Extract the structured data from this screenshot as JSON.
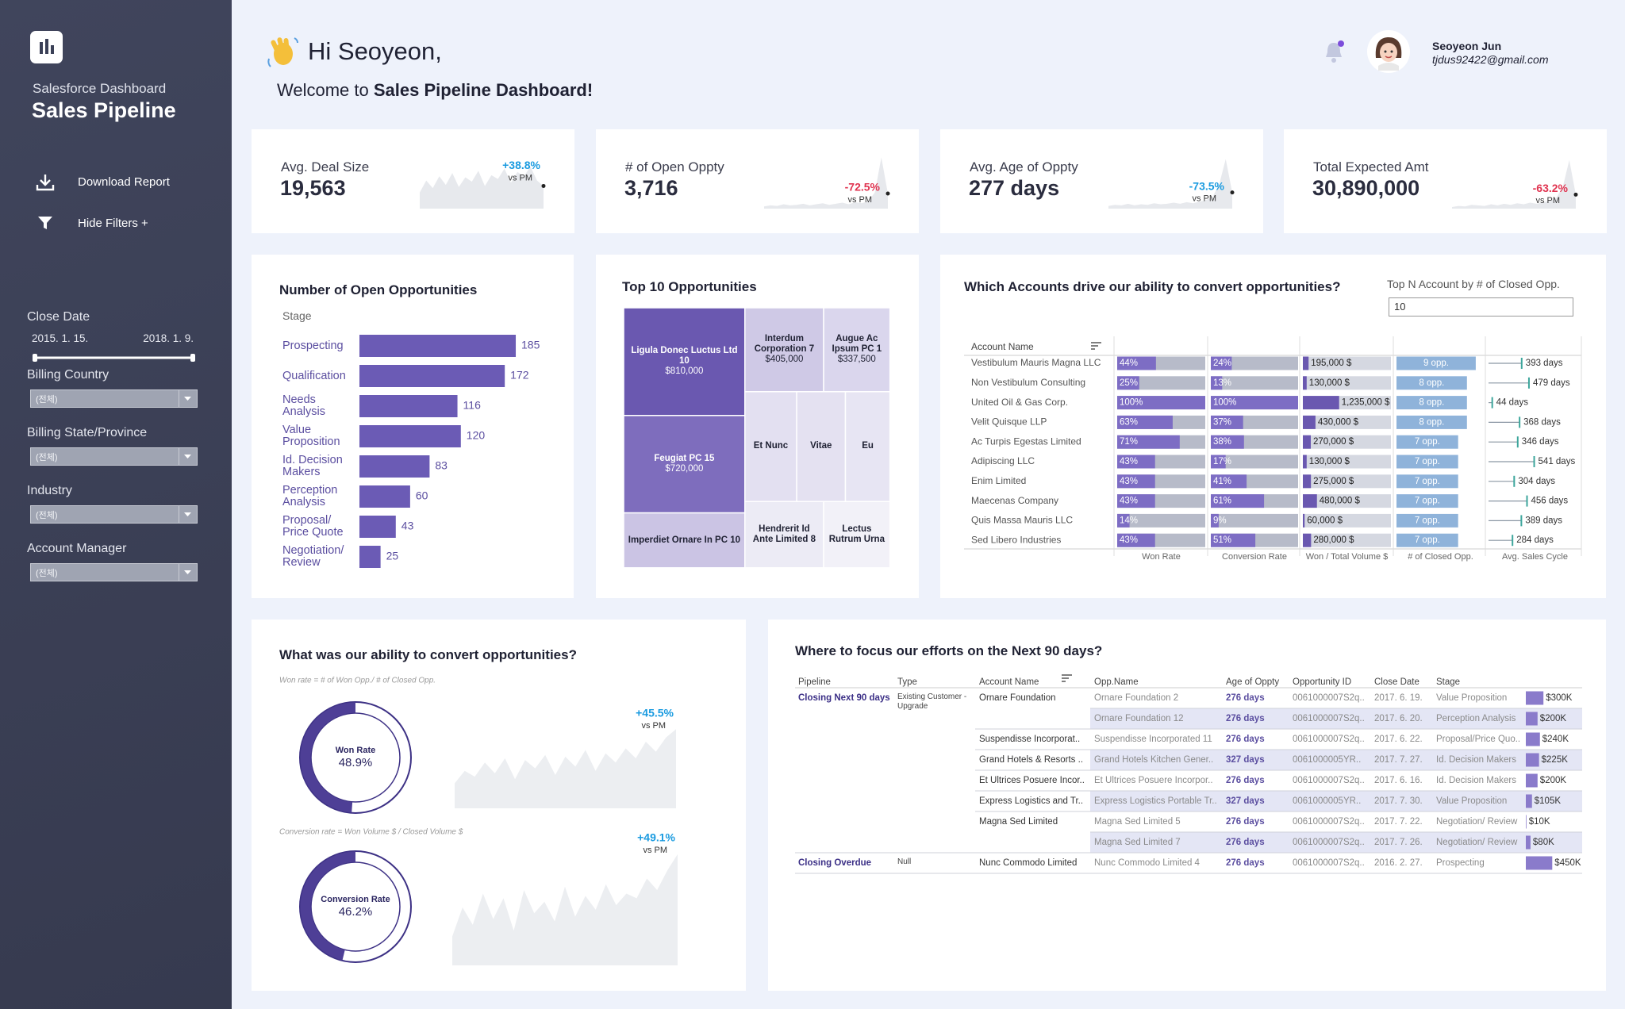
{
  "sidebar": {
    "subtitle": "Salesforce Dashboard",
    "title": "Sales Pipeline",
    "menu": [
      "Download Report",
      "Hide Filters +"
    ],
    "close_date": {
      "label": "Close Date",
      "start": "2015. 1. 15.",
      "end": "2018. 1. 9."
    },
    "filters": [
      {
        "label": "Billing Country",
        "value": "(전체)"
      },
      {
        "label": "Billing State/Province",
        "value": "(전체)"
      },
      {
        "label": "Industry",
        "value": "(전체)"
      },
      {
        "label": "Account Manager",
        "value": "(전체)"
      }
    ]
  },
  "header": {
    "greeting": "Hi Seoyeon,",
    "welcome": "Welcome to",
    "dashboard_name": "Sales Pipeline Dashboard!",
    "user_name": "Seoyeon Jun",
    "user_email": "tjdus92422@gmail.com"
  },
  "kpis": [
    {
      "label": "Avg. Deal Size",
      "value": "19,563",
      "change": "+38.8%",
      "change_color": "#1a9be0",
      "vs": "vs PM",
      "trend": {
        "type": "area",
        "values": [
          30,
          52,
          38,
          60,
          44,
          66,
          40,
          58,
          50,
          70,
          42,
          62,
          55,
          74,
          48,
          68,
          60,
          78,
          52,
          42
        ],
        "ylim": [
          0,
          100
        ],
        "color": "#e7e9ed"
      }
    },
    {
      "label": "# of Open Oppty",
      "value": "3,716",
      "change": "-72.5%",
      "change_color": "#e0334f",
      "vs": "vs PM",
      "trend": {
        "type": "area",
        "values": [
          4,
          6,
          5,
          8,
          6,
          7,
          9,
          6,
          8,
          10,
          7,
          9,
          11,
          8,
          12,
          10,
          14,
          30,
          95,
          28
        ],
        "ylim": [
          0,
          100
        ],
        "color": "#e7e9ed"
      }
    },
    {
      "label": "Avg. Age of Oppty",
      "value": "277 days",
      "change": "-73.5%",
      "change_color": "#1a9be0",
      "vs": "vs PM",
      "trend": {
        "type": "area",
        "values": [
          5,
          7,
          6,
          9,
          6,
          8,
          7,
          10,
          8,
          9,
          11,
          9,
          12,
          10,
          13,
          16,
          22,
          45,
          92,
          30
        ],
        "ylim": [
          0,
          100
        ],
        "color": "#e7e9ed"
      }
    },
    {
      "label": "Total Expected Amt",
      "value": "30,890,000",
      "change": "-63.2%",
      "change_color": "#e0334f",
      "vs": "vs PM",
      "trend": {
        "type": "area",
        "values": [
          3,
          5,
          4,
          7,
          6,
          5,
          8,
          6,
          9,
          7,
          10,
          8,
          11,
          9,
          12,
          14,
          20,
          40,
          90,
          26
        ],
        "ylim": [
          0,
          100
        ],
        "color": "#e7e9ed"
      }
    }
  ],
  "open_opportunities": {
    "type": "bar",
    "orientation": "horizontal",
    "title": "Number of Open Opportunities",
    "axis_label": "Stage",
    "categories": [
      "Prospecting",
      "Qualification",
      "Needs Analysis",
      "Value Proposition",
      "Id. Decision Makers",
      "Perception Analysis",
      "Proposal/ Price Quote",
      "Negotiation/ Review"
    ],
    "values": [
      185,
      172,
      116,
      120,
      83,
      60,
      43,
      25
    ],
    "xlim": [
      0,
      200
    ],
    "color": "#6b5bb5"
  },
  "top_opportunities": {
    "type": "treemap",
    "title": "Top 10 Opportunities",
    "tiles": [
      {
        "name": "Ligula Donec Luctus Ltd 10",
        "value": 810000,
        "value_label": "$810,000",
        "color": "#6a58b0"
      },
      {
        "name": "Feugiat PC 15",
        "value": 720000,
        "value_label": "$720,000",
        "color": "#7e6dbd"
      },
      {
        "name": "Imperdiet Ornare In PC 10",
        "color": "#cbc4e4"
      },
      {
        "name": "Interdum Corporation 7",
        "value": 405000,
        "value_label": "$405,000",
        "color": "#cfc9e6"
      },
      {
        "name": "Augue Ac Ipsum PC 1",
        "value": 337500,
        "value_label": "$337,500",
        "color": "#dad6ed"
      },
      {
        "name": "Et Nunc",
        "color": "#e3e0f1"
      },
      {
        "name": "Vitae",
        "color": "#e4e1f1"
      },
      {
        "name": "Eu",
        "color": "#e7e5f3"
      },
      {
        "name": "Hendrerit Id Ante Limited 8",
        "color": "#ecebf5"
      },
      {
        "name": "Lectus Rutrum Urna",
        "color": "#f2f1f8"
      }
    ]
  },
  "accounts": {
    "title": "Which Accounts drive our ability to convert opportunities?",
    "top_n_label": "Top N Account by # of Closed Opp.",
    "top_n_value": "10",
    "name_header": "Account Name",
    "names": [
      "Vestibulum Mauris Magna LLC",
      "Non Vestibulum Consulting",
      "United Oil & Gas Corp.",
      "Velit Quisque LLP",
      "Ac Turpis Egestas Limited",
      "Adipiscing LLC",
      "Enim Limited",
      "Maecenas Company",
      "Quis Massa Mauris LLC",
      "Sed Libero Industries"
    ],
    "columns": [
      {
        "label": "Won Rate",
        "type": "bar",
        "values": [
          44,
          25,
          100,
          63,
          71,
          43,
          43,
          43,
          14,
          43
        ],
        "value_labels": [
          "44%",
          "25%",
          "100%",
          "63%",
          "71%",
          "43%",
          "43%",
          "43%",
          "14%",
          "43%"
        ],
        "xlim": [
          0,
          100
        ],
        "color": "#7d6dc4",
        "background": "#b7bbc9"
      },
      {
        "label": "Conversion Rate",
        "type": "bar",
        "values": [
          24,
          13,
          100,
          37,
          38,
          17,
          41,
          61,
          9,
          51
        ],
        "value_labels": [
          "24%",
          "13%",
          "100%",
          "37%",
          "38%",
          "17%",
          "41%",
          "61%",
          "9%",
          "51%"
        ],
        "xlim": [
          0,
          100
        ],
        "color": "#7d6dc4",
        "background": "#b7bbc9"
      },
      {
        "label": "Won / Total Volume $",
        "type": "bar",
        "values": [
          195000,
          130000,
          1235000,
          430000,
          270000,
          130000,
          275000,
          480000,
          60000,
          280000
        ],
        "value_labels": [
          "195,000 $",
          "130,000 $",
          "1,235,000 $",
          "430,000 $",
          "270,000 $",
          "130,000 $",
          "275,000 $",
          "480,000 $",
          "60,000 $",
          "280,000 $"
        ],
        "xlim": [
          0,
          3000000
        ],
        "color": "#6a58b0",
        "background": "#d5d8e1"
      },
      {
        "label": "# of Closed Opp.",
        "type": "bar",
        "values": [
          9,
          8,
          8,
          8,
          7,
          7,
          7,
          7,
          7,
          7
        ],
        "value_labels": [
          "9 opp.",
          "8 opp.",
          "8 opp.",
          "8 opp.",
          "7 opp.",
          "7 opp.",
          "7 opp.",
          "7 opp.",
          "7 opp.",
          "7 opp."
        ],
        "xlim": [
          0,
          10
        ],
        "color": "#8fb3da"
      },
      {
        "label": "Avg. Sales Cycle",
        "type": "lollipop",
        "values": [
          393,
          479,
          44,
          368,
          346,
          541,
          304,
          456,
          389,
          284
        ],
        "value_labels": [
          "393 days",
          "479 days",
          "44 days",
          "368 days",
          "346 days",
          "541 days",
          "304 days",
          "456 days",
          "389 days",
          "284 days"
        ],
        "xlim": [
          0,
          1100
        ],
        "color": "#3da69c"
      }
    ]
  },
  "conversion": {
    "title": "What was our ability to convert opportunities?",
    "charts": [
      {
        "type": "donut",
        "note": "Won rate = # of Won Opp./ # of Closed Opp.",
        "label": "Won Rate",
        "value": 48.9,
        "value_label": "48.9%",
        "range": [
          0,
          100
        ],
        "color": "#4e3f96",
        "change": "+45.5%",
        "change_color": "#1a9be0",
        "vs": "vs PM",
        "trend": {
          "type": "area",
          "values": [
            30,
            45,
            38,
            55,
            42,
            60,
            35,
            58,
            48,
            64,
            40,
            62,
            50,
            70,
            45,
            66,
            55,
            72,
            60,
            80,
            68,
            85,
            95
          ],
          "ylim": [
            0,
            100
          ],
          "color": "#eceef1"
        }
      },
      {
        "type": "donut",
        "note": "Conversion rate = Won Volume $ / Closed Volume $",
        "label": "Conversion Rate",
        "value": 46.2,
        "value_label": "46.2%",
        "range": [
          0,
          100
        ],
        "color": "#4e3f96",
        "change": "+49.1%",
        "change_color": "#1a9be0",
        "vs": "vs PM",
        "trend": {
          "type": "area",
          "values": [
            25,
            50,
            35,
            62,
            40,
            58,
            30,
            65,
            45,
            55,
            38,
            68,
            42,
            60,
            48,
            70,
            52,
            62,
            58,
            75,
            65,
            82,
            96
          ],
          "ylim": [
            0,
            100
          ],
          "color": "#eceef1"
        }
      }
    ]
  },
  "focus": {
    "title": "Where to focus our efforts on the Next 90 days?",
    "headers": [
      "Pipeline",
      "Type",
      "Account Name",
      "Opp.Name",
      "Age of Oppty",
      "Opportunity ID",
      "Close Date",
      "Stage"
    ],
    "amount_xlim": [
      0,
      500000
    ],
    "amount_color": "#8a7bcb",
    "rows": [
      {
        "pipeline": "Closing Next 90 days",
        "type": "Existing Customer - Upgrade",
        "account": "Ornare Foundation",
        "opp": "Ornare Foundation 2",
        "age": "276 days",
        "id": "0061000007S2q..",
        "close": "2017. 6. 19.",
        "stage": "Value Proposition",
        "amount": 300000,
        "amount_label": "$300K"
      },
      {
        "opp": "Ornare Foundation 12",
        "age": "276 days",
        "id": "0061000007S2q..",
        "close": "2017. 6. 20.",
        "stage": "Perception Analysis",
        "amount": 200000,
        "amount_label": "$200K"
      },
      {
        "account": "Suspendisse Incorporat..",
        "opp": "Suspendisse Incorporated 11",
        "age": "276 days",
        "id": "0061000007S2q..",
        "close": "2017. 6. 22.",
        "stage": "Proposal/Price Quo..",
        "amount": 240000,
        "amount_label": "$240K"
      },
      {
        "account": "Grand Hotels & Resorts ..",
        "opp": "Grand Hotels Kitchen Gener..",
        "age": "327 days",
        "id": "0061000005YR..",
        "close": "2017. 7. 27.",
        "stage": "Id. Decision Makers",
        "amount": 225000,
        "amount_label": "$225K"
      },
      {
        "account": "Et Ultrices Posuere Incor..",
        "opp": "Et Ultrices Posuere Incorpor..",
        "age": "276 days",
        "id": "0061000007S2q..",
        "close": "2017. 6. 16.",
        "stage": "Id. Decision Makers",
        "amount": 200000,
        "amount_label": "$200K"
      },
      {
        "account": "Express Logistics and Tr..",
        "opp": "Express Logistics Portable Tr..",
        "age": "327 days",
        "id": "0061000005YR..",
        "close": "2017. 7. 30.",
        "stage": "Value Proposition",
        "amount": 105000,
        "amount_label": "$105K"
      },
      {
        "account": "Magna Sed Limited",
        "opp": "Magna Sed Limited 5",
        "age": "276 days",
        "id": "0061000007S2q..",
        "close": "2017. 7. 22.",
        "stage": "Negotiation/ Review",
        "amount": 10000,
        "amount_label": "$10K"
      },
      {
        "opp": "Magna Sed Limited 7",
        "age": "276 days",
        "id": "0061000007S2q..",
        "close": "2017. 7. 26.",
        "stage": "Negotiation/ Review",
        "amount": 80000,
        "amount_label": "$80K"
      },
      {
        "pipeline": "Closing Overdue",
        "type": "Null",
        "account": "Nunc Commodo Limited",
        "opp": "Nunc Commodo Limited 4",
        "age": "276 days",
        "id": "0061000007S2q..",
        "close": "2016. 2. 27.",
        "stage": "Prospecting",
        "amount": 450000,
        "amount_label": "$450K"
      }
    ]
  }
}
